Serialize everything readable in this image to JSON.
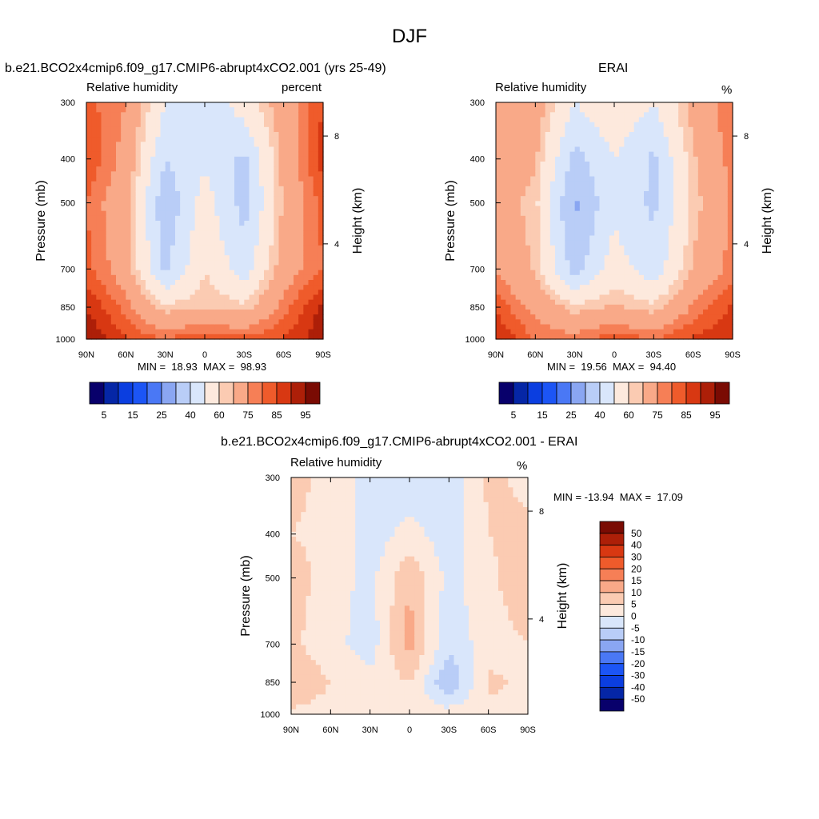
{
  "page": {
    "title": "DJF"
  },
  "chart_data": [
    {
      "type": "heatmap",
      "title": "b.e21.BCO2x4cmip6.f09_g17.CMIP6-abrupt4xCO2.001 (yrs 25-49)",
      "left_label": "Relative humidity",
      "right_label": "percent",
      "ylabel": "Pressure (mb)",
      "ylabel_right": "Height (km)",
      "x_ticks": [
        "90N",
        "60N",
        "30N",
        "0",
        "30S",
        "60S",
        "90S"
      ],
      "y_ticks": [
        "300",
        "400",
        "500",
        "700",
        "850",
        "1000"
      ],
      "y_right_ticks": [
        "8",
        "4"
      ],
      "min_text": "MIN =  18.93  MAX =  98.93",
      "min": 18.93,
      "max": 98.93,
      "colorbar_levels": [
        5,
        10,
        15,
        20,
        25,
        30,
        40,
        50,
        60,
        65,
        75,
        80,
        85,
        90,
        95
      ],
      "colorbar_labels": [
        "5",
        "15",
        "25",
        "40",
        "60",
        "75",
        "85",
        "95"
      ],
      "x": [
        -90,
        -60,
        -30,
        0,
        30,
        60,
        90
      ],
      "y": [
        300,
        400,
        500,
        700,
        850,
        1000
      ],
      "z": [
        [
          82,
          75,
          50,
          42,
          55,
          70,
          85
        ],
        [
          85,
          72,
          40,
          48,
          38,
          68,
          88
        ],
        [
          80,
          68,
          32,
          55,
          36,
          66,
          82
        ],
        [
          82,
          70,
          38,
          60,
          45,
          70,
          80
        ],
        [
          90,
          78,
          62,
          65,
          62,
          78,
          92
        ],
        [
          95,
          85,
          80,
          85,
          82,
          85,
          94
        ]
      ]
    },
    {
      "type": "heatmap",
      "title": "ERAI",
      "left_label": "Relative humidity",
      "right_label": "%",
      "ylabel": "Pressure (mb)",
      "ylabel_right": "Height (km)",
      "x_ticks": [
        "90N",
        "60N",
        "30N",
        "0",
        "30S",
        "60S",
        "90S"
      ],
      "y_ticks": [
        "300",
        "400",
        "500",
        "700",
        "850",
        "1000"
      ],
      "y_right_ticks": [
        "8",
        "4"
      ],
      "min_text": "MIN =  19.56  MAX =  94.40",
      "min": 19.56,
      "max": 94.4,
      "colorbar_levels": [
        5,
        10,
        15,
        20,
        25,
        30,
        40,
        50,
        60,
        65,
        75,
        80,
        85,
        90,
        95
      ],
      "colorbar_labels": [
        "5",
        "15",
        "25",
        "40",
        "60",
        "75",
        "85",
        "95"
      ],
      "x": [
        -90,
        -60,
        -30,
        0,
        30,
        60,
        90
      ],
      "y": [
        300,
        400,
        500,
        700,
        850,
        1000
      ],
      "z": [
        [
          75,
          70,
          50,
          58,
          50,
          68,
          80
        ],
        [
          72,
          66,
          36,
          50,
          38,
          64,
          78
        ],
        [
          70,
          62,
          28,
          48,
          38,
          62,
          76
        ],
        [
          74,
          64,
          36,
          55,
          44,
          66,
          78
        ],
        [
          84,
          72,
          62,
          66,
          62,
          76,
          86
        ],
        [
          90,
          80,
          78,
          84,
          80,
          86,
          90
        ]
      ]
    },
    {
      "type": "heatmap",
      "title": "b.e21.BCO2x4cmip6.f09_g17.CMIP6-abrupt4xCO2.001 - ERAI",
      "left_label": "Relative humidity",
      "right_label": "%",
      "ylabel": "Pressure (mb)",
      "ylabel_right": "Height (km)",
      "x_ticks": [
        "90N",
        "60N",
        "30N",
        "0",
        "30S",
        "60S",
        "90S"
      ],
      "y_ticks": [
        "300",
        "400",
        "500",
        "700",
        "850",
        "1000"
      ],
      "y_right_ticks": [
        "8",
        "4"
      ],
      "min_text": "MIN = -13.94  MAX =  17.09",
      "min": -13.94,
      "max": 17.09,
      "colorbar_levels": [
        50,
        40,
        30,
        20,
        15,
        10,
        5,
        0,
        -5,
        -10,
        -15,
        -20,
        -30,
        -40,
        -50
      ],
      "colorbar_labels": [
        "50",
        "40",
        "30",
        "20",
        "15",
        "10",
        "5",
        "0",
        "-5",
        "-10",
        "-15",
        "-20",
        "-30",
        "-40",
        "-50"
      ],
      "x": [
        -90,
        -60,
        -30,
        0,
        30,
        60,
        90
      ],
      "y": [
        300,
        400,
        500,
        700,
        850,
        1000
      ],
      "z": [
        [
          6,
          4,
          -2,
          -3,
          -4,
          6,
          4
        ],
        [
          5,
          4,
          -3,
          2,
          -3,
          5,
          6
        ],
        [
          7,
          3,
          -2,
          10,
          -2,
          4,
          8
        ],
        [
          6,
          2,
          -3,
          12,
          -4,
          3,
          5
        ],
        [
          9,
          5,
          2,
          5,
          -10,
          6,
          4
        ],
        [
          4,
          3,
          4,
          2,
          3,
          4,
          2
        ]
      ]
    }
  ],
  "colors": {
    "rh_palette": [
      "#08006b",
      "#0526a6",
      "#0b3ee0",
      "#1c55f5",
      "#4a78f5",
      "#8aa6f2",
      "#b9cdf7",
      "#d9e6fb",
      "#fde9dd",
      "#fbcbb2",
      "#f9a988",
      "#f67f56",
      "#ef5b2b",
      "#d83812",
      "#ad1f08",
      "#7a0b03"
    ],
    "diff_palette": [
      "#7a0b03",
      "#ad1f08",
      "#d83812",
      "#ef5b2b",
      "#f67f56",
      "#f9a988",
      "#fbcbb2",
      "#fde9dd",
      "#d9e6fb",
      "#b9cdf7",
      "#8aa6f2",
      "#4a78f5",
      "#1c55f5",
      "#0b3ee0",
      "#0526a6",
      "#08006b"
    ]
  }
}
